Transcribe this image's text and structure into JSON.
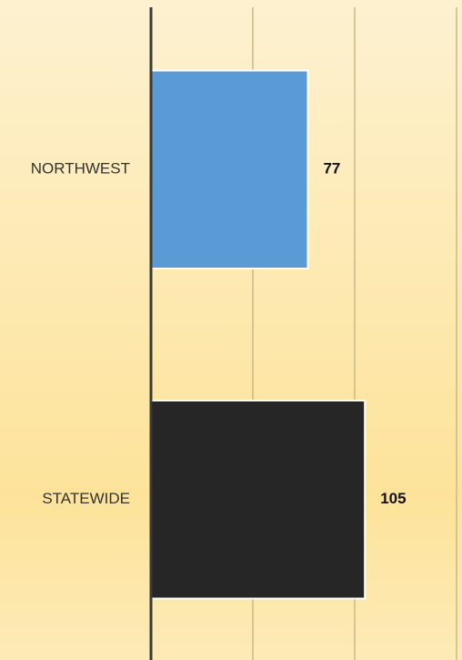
{
  "chart_data": {
    "type": "bar",
    "orientation": "horizontal",
    "categories": [
      "NORTHWEST",
      "STATEWIDE"
    ],
    "values": [
      77,
      105
    ],
    "colors": [
      "#5b9bd5",
      "#262626"
    ],
    "xlim": [
      0,
      150
    ],
    "xticks": [
      0,
      50,
      100,
      150
    ],
    "grid": true
  }
}
